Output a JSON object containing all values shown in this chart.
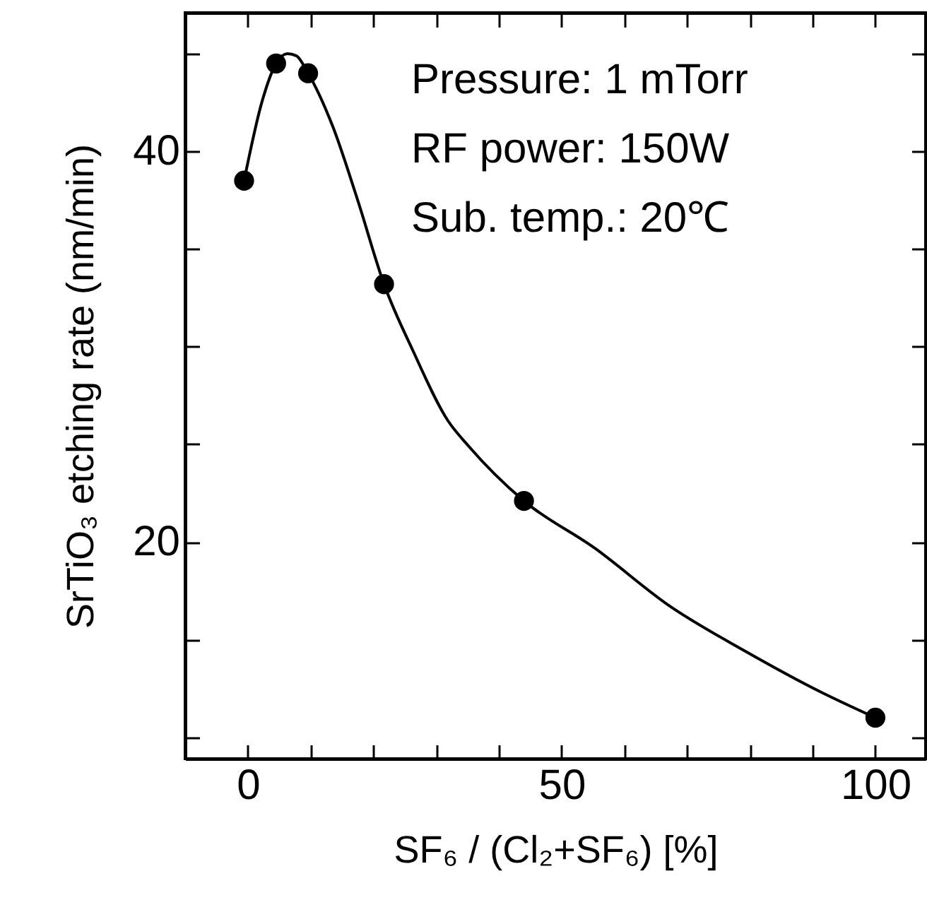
{
  "chart_data": {
    "type": "scatter",
    "xlabel": "SF₆ / (Cl₂+SF₆)   [%]",
    "ylabel": "SrTiO₃ etching rate (nm/min)",
    "annotations": [
      "Pressure: 1 mTorr",
      "RF power: 150W",
      "Sub. temp.: 20℃"
    ],
    "xlim": [
      -10,
      108
    ],
    "ylim": [
      8.9,
      47.1
    ],
    "xticks": [
      0,
      {
        "value": 10,
        "label": null
      },
      {
        "value": 20,
        "label": null
      },
      {
        "value": 30,
        "label": null
      },
      {
        "value": 40,
        "label": null
      },
      50,
      {
        "value": 60,
        "label": null
      },
      {
        "value": 70,
        "label": null
      },
      {
        "value": 80,
        "label": null
      },
      {
        "value": 90,
        "label": null
      },
      100
    ],
    "yticks": [
      {
        "value": 10,
        "label": null
      },
      {
        "value": 15,
        "label": null
      },
      20,
      {
        "value": 25,
        "label": null
      },
      {
        "value": 30,
        "label": null
      },
      {
        "value": 35,
        "label": null
      },
      40,
      {
        "value": 45,
        "label": null
      }
    ],
    "grid": false,
    "marker": "circle",
    "series": [
      {
        "type": "line",
        "color": "#000000",
        "line_style": "solid",
        "marker": "none",
        "x": [
          -0.6,
          2.3,
          4.5,
          6.3,
          7.7,
          9.6,
          13.5,
          17.5,
          21.7,
          26.3,
          31.9,
          35.2,
          44,
          55.2,
          67.3,
          79.3,
          91.4,
          100
        ],
        "values": [
          38.5,
          42.6,
          44.5,
          45.0,
          44.9,
          44.0,
          41.3,
          37.5,
          33.2,
          29.8,
          26.2,
          24.9,
          22.1,
          19.7,
          16.7,
          14.4,
          12.3,
          11.0
        ]
      },
      {
        "color": "#000000",
        "x": [
          -0.6,
          4.5,
          9.6,
          21.7,
          44,
          100
        ],
        "values": [
          38.5,
          44.5,
          44.0,
          33.2,
          22.1,
          11.0
        ]
      }
    ]
  }
}
